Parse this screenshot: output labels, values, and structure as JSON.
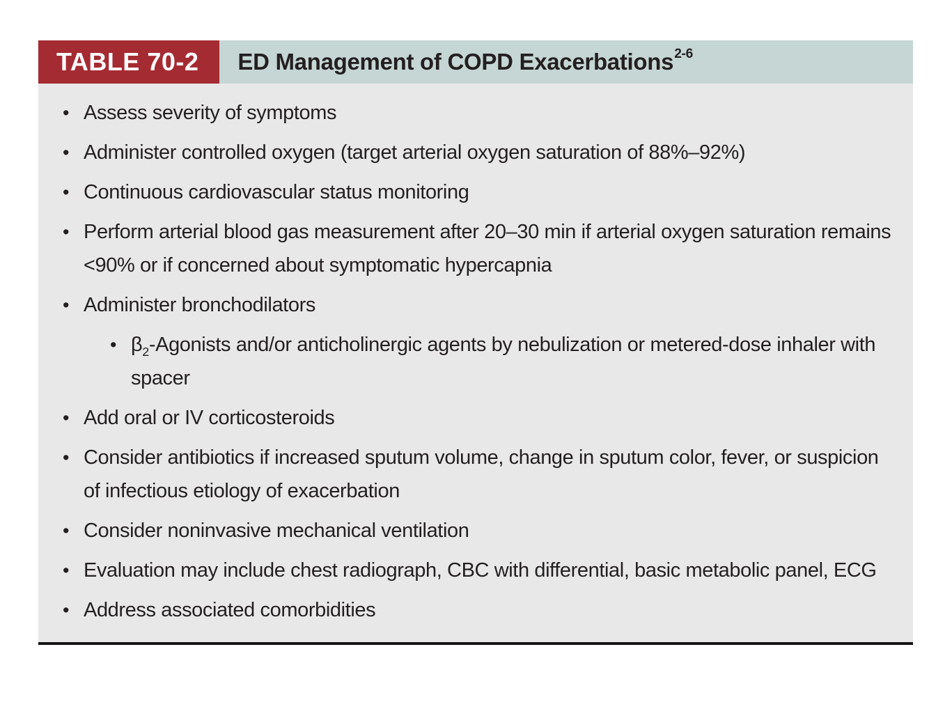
{
  "table": {
    "label": "TABLE 70-2",
    "title": "ED Management of COPD Exacerbations",
    "title_superscript": "2-6",
    "bullet_glyph": "•",
    "colors": {
      "label_bg": "#a52b32",
      "label_text": "#ffffff",
      "header_bg": "#c5d6d4",
      "body_bg": "#e9e8e8",
      "text": "#231f20",
      "bottom_rule": "#161313"
    },
    "items": [
      {
        "text": "Assess severity of symptoms"
      },
      {
        "text": "Administer controlled oxygen (target arterial oxygen saturation of 88%–92%)"
      },
      {
        "text": "Continuous cardiovascular status monitoring"
      },
      {
        "text": "Perform arterial blood gas measurement after 20–30 min if arterial oxygen saturation remains <90% or if concerned about symptomatic hypercapnia"
      },
      {
        "text": "Administer bronchodilators"
      },
      {
        "text": "Add oral or IV corticosteroids"
      },
      {
        "text": "Consider antibiotics if increased sputum volume, change in sputum color, fever, or suspicion of infectious etiology of exacerbation"
      },
      {
        "text": "Consider noninvasive mechanical ventilation"
      },
      {
        "text": "Evaluation may include chest radiograph, CBC with differential, basic metabolic panel, ECG"
      },
      {
        "text": "Address associated comorbidities"
      }
    ],
    "sub_item": {
      "base": "β",
      "subscript": "2",
      "text": "-Agonists and/or anticholinergic agents by nebulization or metered-dose inhaler with spacer"
    }
  }
}
